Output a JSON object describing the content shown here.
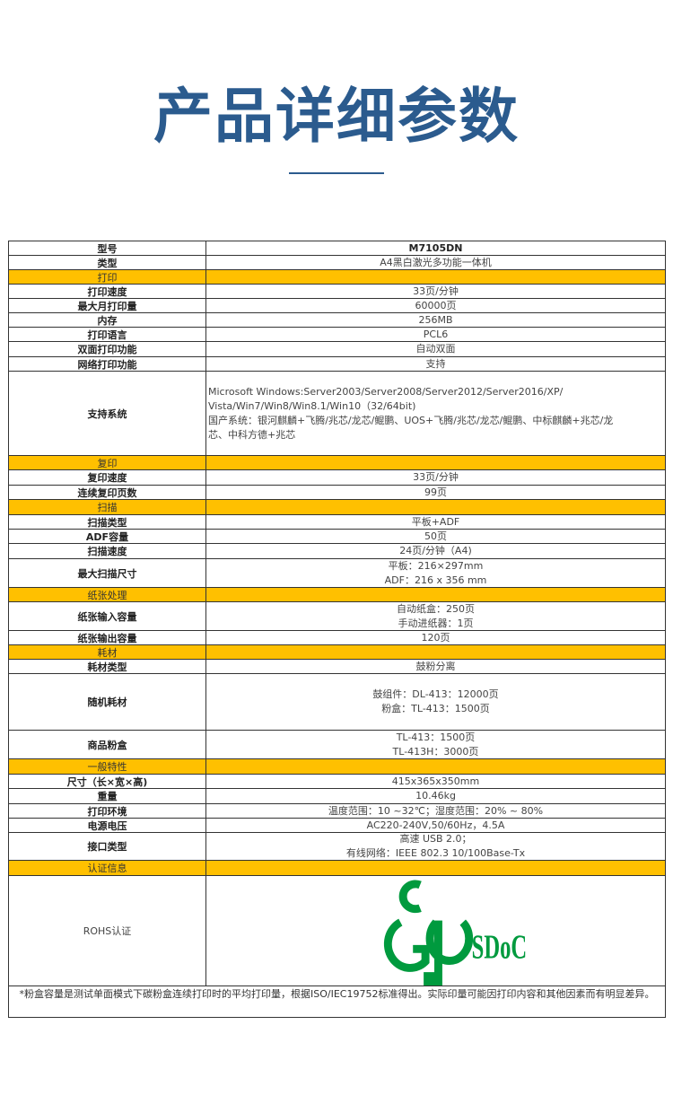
{
  "header": {
    "title": "产品详细参数"
  },
  "rows": [
    {
      "label": "型号",
      "value": [
        "M7105DN"
      ],
      "bold": true
    },
    {
      "label": "类型",
      "value": [
        "A4黑白激光多功能一体机"
      ]
    },
    {
      "label": "打印",
      "section": true
    },
    {
      "label": "打印速度",
      "value": [
        "33页/分钟"
      ]
    },
    {
      "label": "最大月打印量",
      "value": [
        "60000页"
      ]
    },
    {
      "label": "内存",
      "value": [
        "256MB"
      ]
    },
    {
      "label": "打印语言",
      "value": [
        "PCL6"
      ]
    },
    {
      "label": "双面打印功能",
      "value": [
        "自动双面"
      ]
    },
    {
      "label": "网络打印功能",
      "value": [
        "支持"
      ]
    },
    {
      "label": "支持系统",
      "align": "left",
      "value": [
        "Microsoft Windows:Server2003/Server2008/Server2012/Server2016/XP/",
        "Vista/Win7/Win8/Win8.1/Win10（32/64bit)",
        "国产系统：银河麒麟+飞腾/兆芯/龙芯/鲲鹏、UOS+飞腾/兆芯/龙芯/鲲鹏、中标麒麟+兆芯/龙",
        "芯、中科方德+兆芯"
      ]
    },
    {
      "label": "复印",
      "section": true
    },
    {
      "label": "复印速度",
      "value": [
        "33页/分钟"
      ]
    },
    {
      "label": "连续复印页数",
      "value": [
        "99页"
      ]
    },
    {
      "label": "扫描",
      "section": true
    },
    {
      "label": "扫描类型",
      "value": [
        "平板+ADF"
      ]
    },
    {
      "label": "ADF容量",
      "value": [
        "50页"
      ]
    },
    {
      "label": "扫描速度",
      "value": [
        "24页/分钟（A4)"
      ]
    },
    {
      "label": "最大扫描尺寸",
      "value": [
        "平板：216×297mm",
        "ADF：216 x 356 mm"
      ]
    },
    {
      "label": "纸张处理",
      "section": true
    },
    {
      "label": "纸张输入容量",
      "value": [
        "自动纸盒：250页",
        "手动进纸器：1页"
      ]
    },
    {
      "label": "纸张输出容量",
      "value": [
        "120页"
      ]
    },
    {
      "label": "耗材",
      "section": true
    },
    {
      "label": "耗材类型",
      "value": [
        "鼓粉分离"
      ]
    },
    {
      "label": "随机耗材",
      "value": [
        "鼓组件：DL-413：12000页",
        "粉盒：TL-413：1500页"
      ]
    },
    {
      "label": "商品粉盒",
      "value": [
        "TL-413：1500页",
        "TL-413H：3000页"
      ]
    },
    {
      "label": "一般特性",
      "section": true
    },
    {
      "label": "尺寸（长×宽×高)",
      "value": [
        "415x365x350mm"
      ]
    },
    {
      "label": "重量",
      "value": [
        "10.46kg"
      ]
    },
    {
      "label": "打印环境",
      "value": [
        "温度范围：10 ~32℃；湿度范围：20% ~ 80%"
      ]
    },
    {
      "label": "电源电压",
      "value": [
        "AC220-240V,50/60Hz，4.5A"
      ]
    },
    {
      "label": "接口类型",
      "value": [
        "高速 USB 2.0；",
        "有线网络：IEEE 802.3 10/100Base-Tx"
      ]
    },
    {
      "label": "认证信息",
      "section": true
    },
    {
      "label": "ROHS认证",
      "logo": "CGP SDoC",
      "plain": true
    }
  ],
  "footnote": "*粉盒容量是测试单面模式下碳粉盒连续打印时的平均打印量，根据ISO/IEC19752标准得出。实际印量可能因打印内容和其他因素而有明显差异。",
  "colors": {
    "title": "#2b5b8e",
    "section": "#ffc000",
    "logo": "#009a3e"
  }
}
